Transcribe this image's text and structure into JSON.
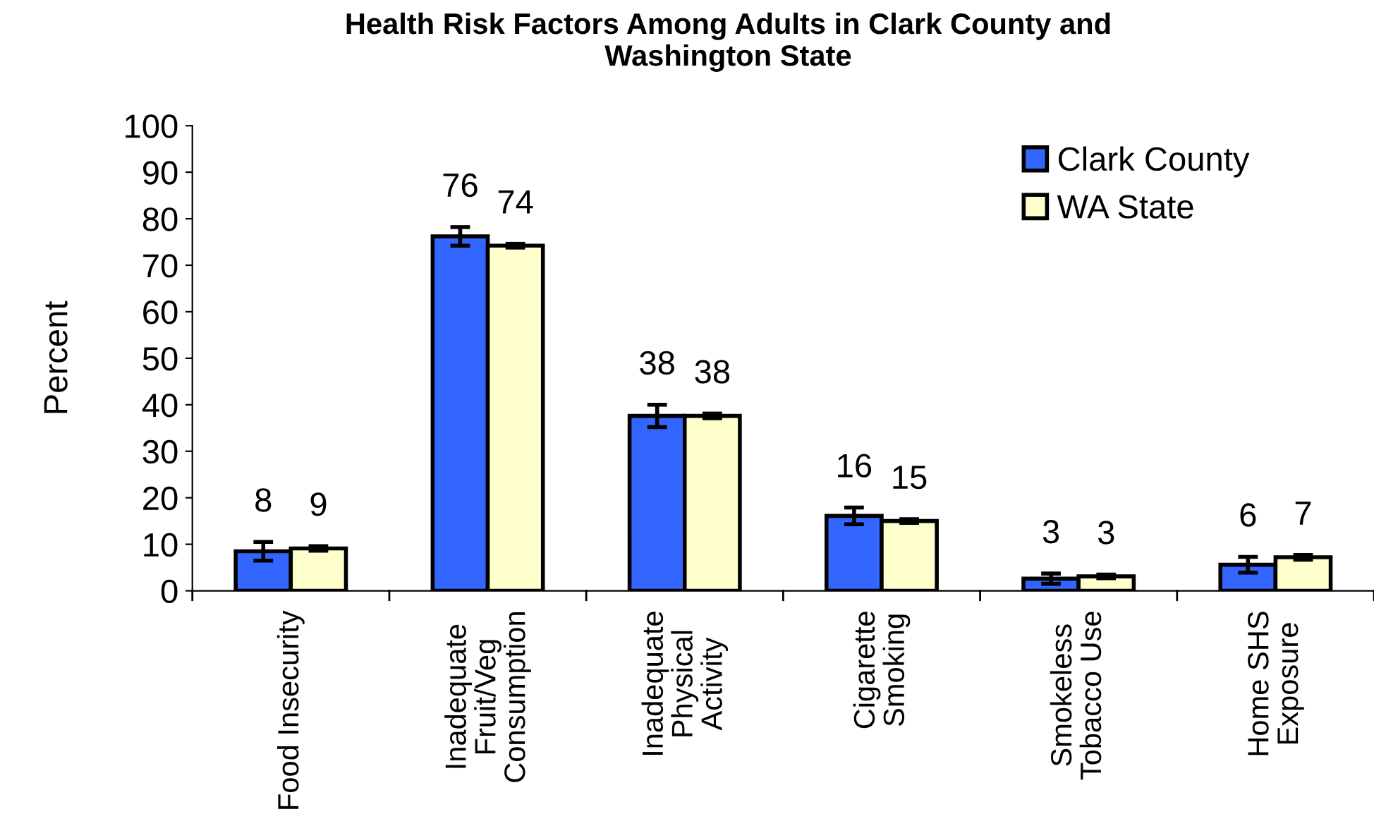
{
  "chart_data": {
    "type": "bar",
    "title": "Health Risk Factors Among Adults in Clark County and\nWashington State",
    "ylabel": "Percent",
    "categories": [
      "Food Insecurity",
      "Inadequate\nFruit/Veg\nConsumption",
      "Inadequate\nPhysical\nActivity",
      "Cigarette\nSmoking",
      "Smokeless\nTobacco Use",
      "Home SHS\nExposure"
    ],
    "series": [
      {
        "name": "Clark County",
        "color": "#3366ff",
        "values": [
          8.5,
          76.2,
          37.6,
          16.1,
          2.6,
          5.6
        ],
        "errors": [
          2.0,
          2.0,
          2.4,
          1.8,
          1.1,
          1.7
        ],
        "value_labels": [
          "8",
          "76",
          "38",
          "16",
          "3",
          "6"
        ]
      },
      {
        "name": "WA State",
        "color": "#ffffcc",
        "values": [
          9.1,
          74.2,
          37.6,
          15.0,
          3.1,
          7.2
        ],
        "errors": [
          0.5,
          0.4,
          0.5,
          0.4,
          0.4,
          0.5
        ],
        "value_labels": [
          "9",
          "74",
          "38",
          "15",
          "3",
          "7"
        ]
      }
    ],
    "ylim": [
      0,
      100
    ],
    "yticks": [
      0,
      10,
      20,
      30,
      40,
      50,
      60,
      70,
      80,
      90,
      100
    ],
    "grid": false,
    "legend": "top right"
  }
}
